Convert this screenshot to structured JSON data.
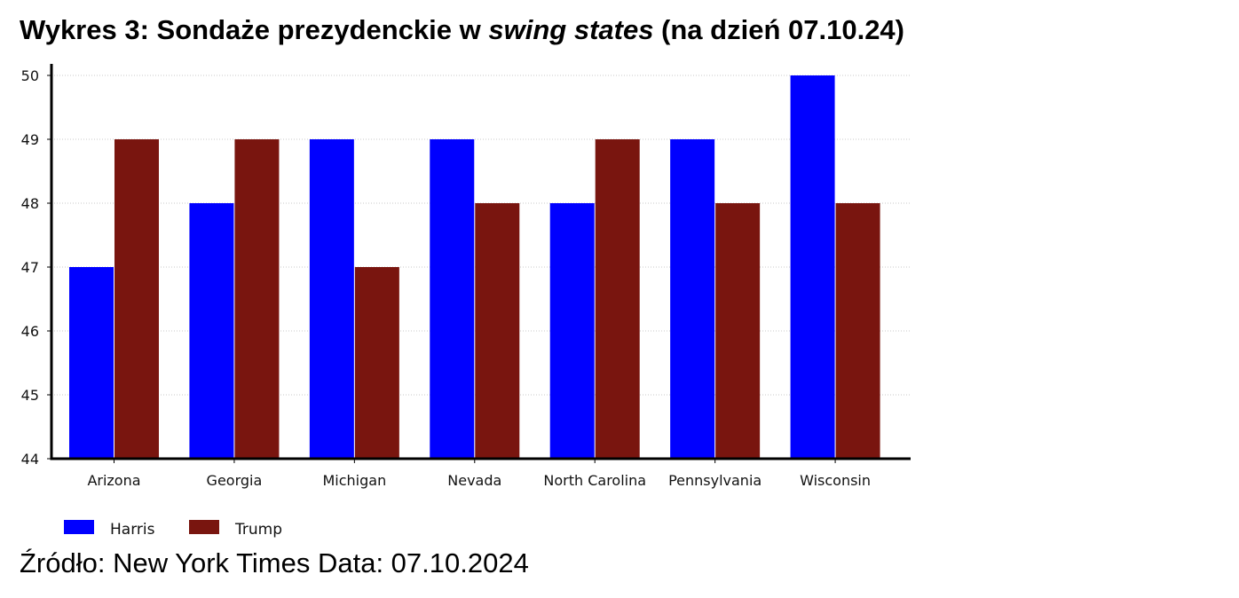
{
  "title": {
    "prefix": "Wykres 3: Sondaże prezydenckie w ",
    "italic": "swing states",
    "suffix": " (na dzień 07.10.24)"
  },
  "source": "Źródło: New York Times Data: 07.10.2024",
  "chart_data": {
    "type": "bar",
    "categories": [
      "Arizona",
      "Georgia",
      "Michigan",
      "Nevada",
      "North Carolina",
      "Pennsylvania",
      "Wisconsin"
    ],
    "series": [
      {
        "name": "Harris",
        "color": "#0000ff",
        "values": [
          47,
          48,
          49,
          49,
          48,
          49,
          50
        ]
      },
      {
        "name": "Trump",
        "color": "#79150f",
        "values": [
          49,
          49,
          47,
          48,
          49,
          48,
          48
        ]
      }
    ],
    "title": "Wykres 3: Sondaże prezydenckie w swing states (na dzień 07.10.24)",
    "xlabel": "",
    "ylabel": "",
    "ylim": [
      44,
      50
    ],
    "yticks": [
      44,
      45,
      46,
      47,
      48,
      49,
      50
    ],
    "grid": true,
    "legend_position": "bottom-left"
  }
}
